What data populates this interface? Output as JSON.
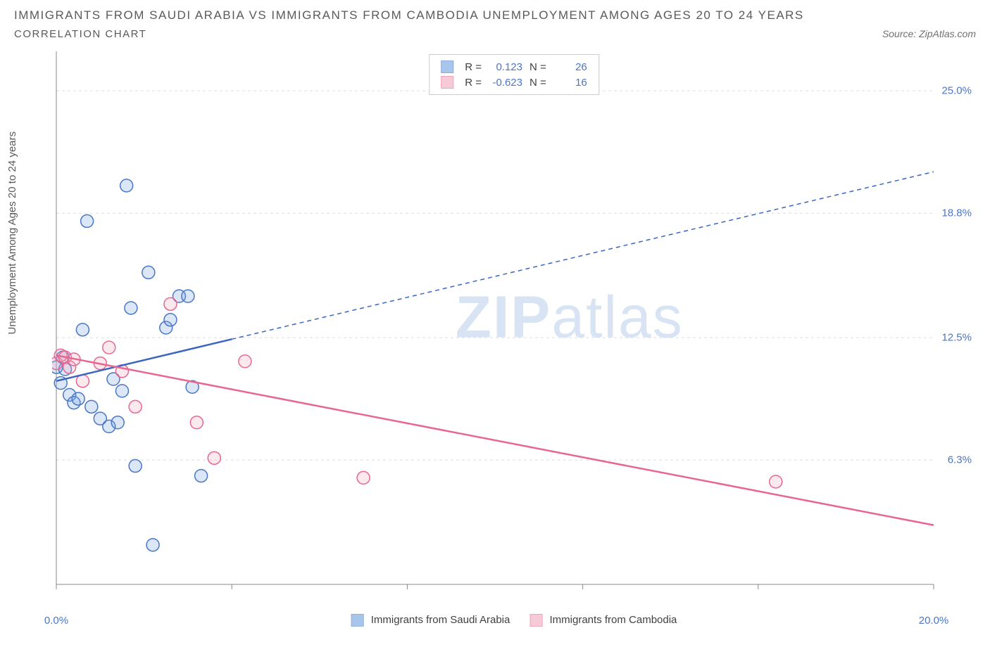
{
  "title": "IMMIGRANTS FROM SAUDI ARABIA VS IMMIGRANTS FROM CAMBODIA UNEMPLOYMENT AMONG AGES 20 TO 24 YEARS",
  "subtitle": "CORRELATION CHART",
  "source": "Source: ZipAtlas.com",
  "y_axis_label": "Unemployment Among Ages 20 to 24 years",
  "watermark_bold": "ZIP",
  "watermark_light": "atlas",
  "chart": {
    "type": "scatter",
    "background_color": "#ffffff",
    "grid_color": "#dddddd",
    "axis_color": "#888888",
    "tick_color": "#888888",
    "label_color": "#4a76c7",
    "xlim": [
      0,
      20
    ],
    "ylim": [
      0,
      27
    ],
    "x_tick_positions": [
      0,
      4,
      8,
      12,
      16,
      20
    ],
    "x_tick_labels": [
      "0.0%",
      "",
      "",
      "",
      "",
      "20.0%"
    ],
    "y_gridlines": [
      6.3,
      12.5,
      18.8,
      25.0
    ],
    "y_tick_labels": [
      "6.3%",
      "12.5%",
      "18.8%",
      "25.0%"
    ],
    "marker_radius": 9,
    "marker_stroke_width": 1.5,
    "marker_fill_opacity": 0.25,
    "series": [
      {
        "name": "Immigrants from Saudi Arabia",
        "color": "#6fa0e0",
        "stroke": "#4a76c7",
        "line_color": "#3a66c0",
        "R": "0.123",
        "N": "26",
        "trend": {
          "x1": 0,
          "y1": 10.3,
          "x2": 20,
          "y2": 20.9,
          "solid_until_x": 4.0
        },
        "points": [
          [
            0.0,
            11.0
          ],
          [
            0.1,
            10.2
          ],
          [
            0.15,
            11.5
          ],
          [
            0.2,
            10.9
          ],
          [
            0.3,
            9.6
          ],
          [
            0.4,
            9.2
          ],
          [
            0.5,
            9.4
          ],
          [
            0.6,
            12.9
          ],
          [
            0.7,
            18.4
          ],
          [
            0.8,
            9.0
          ],
          [
            1.0,
            8.4
          ],
          [
            1.2,
            8.0
          ],
          [
            1.3,
            10.4
          ],
          [
            1.4,
            8.2
          ],
          [
            1.5,
            9.8
          ],
          [
            1.6,
            20.2
          ],
          [
            1.7,
            14.0
          ],
          [
            1.8,
            6.0
          ],
          [
            2.1,
            15.8
          ],
          [
            2.2,
            2.0
          ],
          [
            2.5,
            13.0
          ],
          [
            2.6,
            13.4
          ],
          [
            2.8,
            14.6
          ],
          [
            3.0,
            14.6
          ],
          [
            3.1,
            10.0
          ],
          [
            3.3,
            5.5
          ]
        ]
      },
      {
        "name": "Immigrants from Cambodia",
        "color": "#f2a8bd",
        "stroke": "#e86790",
        "line_color": "#e86790",
        "R": "-0.623",
        "N": "16",
        "trend": {
          "x1": 0,
          "y1": 11.6,
          "x2": 20,
          "y2": 3.0,
          "solid_until_x": 20
        },
        "points": [
          [
            0.0,
            11.2
          ],
          [
            0.1,
            11.6
          ],
          [
            0.2,
            11.5
          ],
          [
            0.3,
            11.0
          ],
          [
            0.4,
            11.4
          ],
          [
            0.6,
            10.3
          ],
          [
            1.0,
            11.2
          ],
          [
            1.2,
            12.0
          ],
          [
            1.5,
            10.8
          ],
          [
            1.8,
            9.0
          ],
          [
            2.6,
            14.2
          ],
          [
            3.2,
            8.2
          ],
          [
            3.6,
            6.4
          ],
          [
            4.3,
            11.3
          ],
          [
            7.0,
            5.4
          ],
          [
            16.4,
            5.2
          ]
        ]
      }
    ]
  },
  "top_legend": {
    "r_label": "R =",
    "n_label": "N ="
  }
}
